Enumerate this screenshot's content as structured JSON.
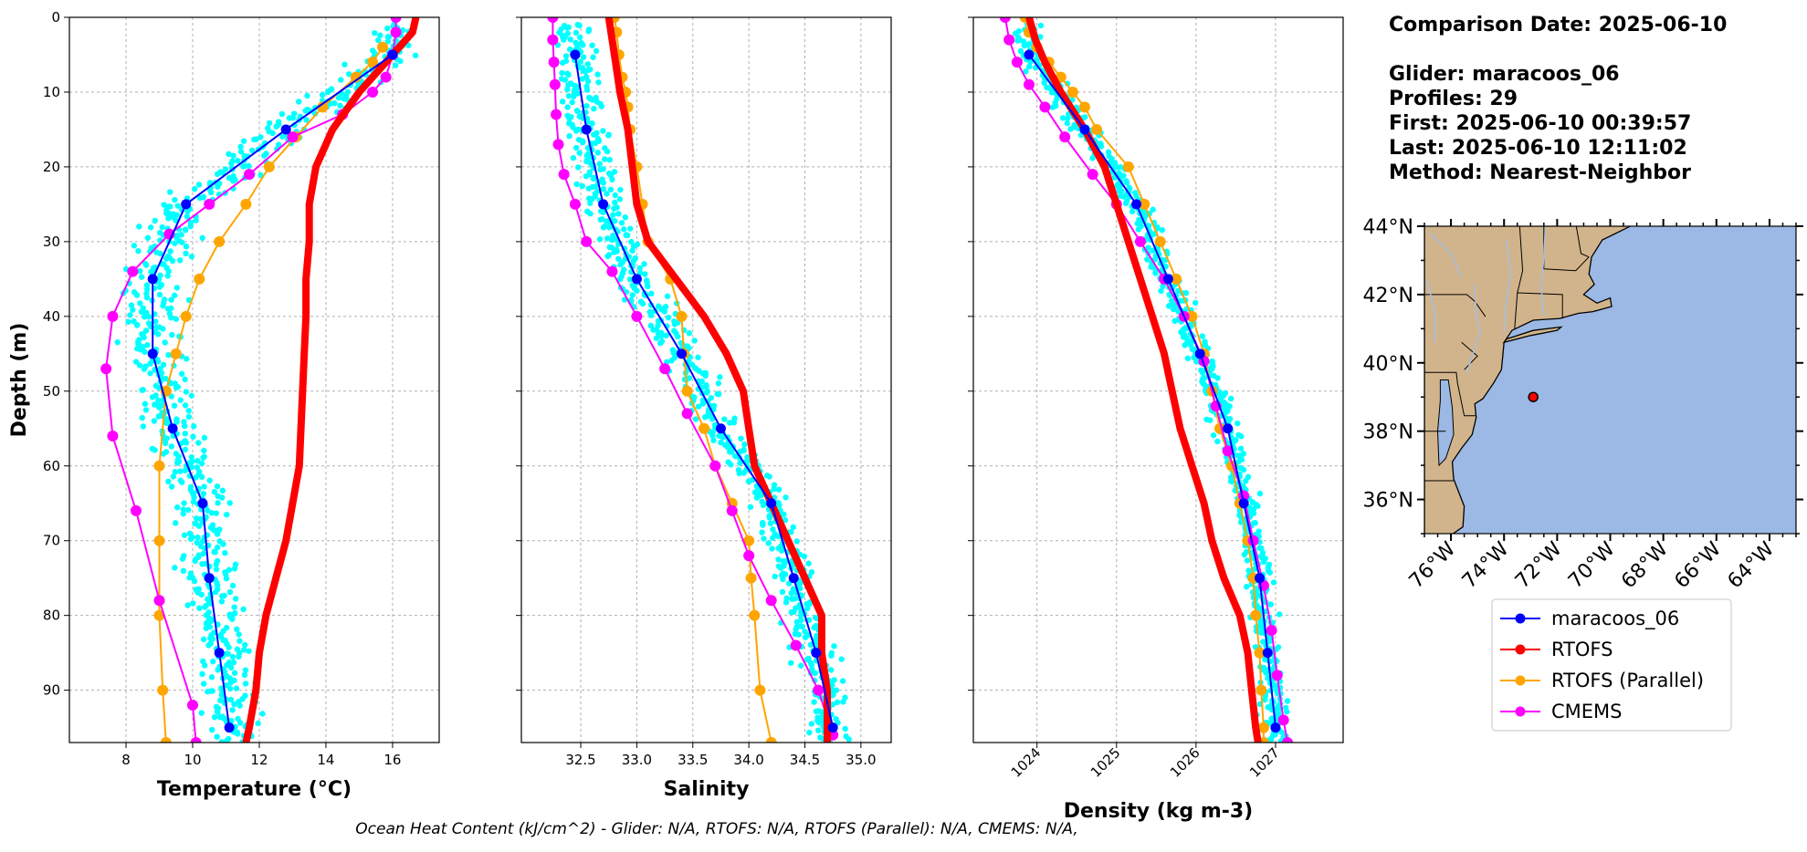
{
  "colors": {
    "glider": "#0000ff",
    "glider_points": "#00ffff",
    "rtofs": "#ff0000",
    "rtofs_parallel": "#ffa500",
    "cmems": "#ff00ff",
    "land": "#d2b48c",
    "ocean": "#9cb8e4"
  },
  "info": {
    "comparison_date": "Comparison Date: 2025-06-10",
    "glider": "Glider: maracoos_06",
    "profiles": "Profiles: 29",
    "first": "First: 2025-06-10 00:39:57",
    "last": "Last: 2025-06-10 12:11:02",
    "method": "Method: Nearest-Neighbor"
  },
  "footer": "Ocean Heat Content (kJ/cm^2) - Glider: N/A,  RTOFS: N/A,  RTOFS (Parallel): N/A,  CMEMS: N/A,",
  "legend": [
    "maracoos_06",
    "RTOFS",
    "RTOFS (Parallel)",
    "CMEMS"
  ],
  "chart_data": [
    {
      "type": "line",
      "xlabel": "Temperature (°C)",
      "ylabel": "Depth (m)",
      "xlim": [
        6.3,
        17.4
      ],
      "ylim": [
        97,
        0
      ],
      "xticks": [
        8,
        10,
        12,
        14,
        16
      ],
      "xtick_labels": [
        "8",
        "10",
        "12",
        "14",
        "16"
      ],
      "yticks": [
        0,
        10,
        20,
        30,
        40,
        50,
        60,
        70,
        80,
        90
      ],
      "grid": true,
      "series": [
        {
          "name": "maracoos_06",
          "depth": [
            5,
            15,
            25,
            35,
            45,
            55,
            65,
            75,
            85,
            95
          ],
          "values": [
            16.0,
            12.8,
            9.8,
            8.8,
            8.8,
            9.4,
            10.3,
            10.5,
            10.8,
            11.1
          ]
        },
        {
          "name": "RTOFS",
          "depth": [
            0,
            2,
            5,
            10,
            15,
            20,
            25,
            30,
            35,
            40,
            45,
            50,
            55,
            60,
            65,
            70,
            75,
            80,
            85,
            90,
            95,
            97
          ],
          "values": [
            16.7,
            16.6,
            16.0,
            15.0,
            14.2,
            13.7,
            13.5,
            13.5,
            13.4,
            13.4,
            13.35,
            13.3,
            13.25,
            13.2,
            13.0,
            12.8,
            12.5,
            12.2,
            12.0,
            11.9,
            11.7,
            11.6
          ]
        },
        {
          "name": "RTOFS (Parallel)",
          "depth": [
            4,
            6,
            8,
            12,
            16,
            20,
            25,
            30,
            35,
            40,
            45,
            50,
            60,
            70,
            80,
            90,
            97
          ],
          "values": [
            15.7,
            15.4,
            14.9,
            13.9,
            13.1,
            12.3,
            11.6,
            10.8,
            10.2,
            9.8,
            9.5,
            9.2,
            9.0,
            9.0,
            9.0,
            9.1,
            9.2
          ]
        },
        {
          "name": "CMEMS",
          "depth": [
            0,
            2,
            5,
            8,
            10,
            13,
            16,
            21,
            25,
            29,
            34,
            40,
            47,
            56,
            66,
            78,
            92,
            97
          ],
          "values": [
            16.1,
            16.1,
            16.0,
            15.8,
            15.4,
            14.5,
            13.0,
            11.7,
            10.5,
            9.3,
            8.2,
            7.6,
            7.4,
            7.6,
            8.3,
            9.0,
            10.0,
            10.1
          ]
        }
      ]
    },
    {
      "type": "line",
      "xlabel": "Salinity",
      "xlim": [
        31.97,
        35.27
      ],
      "ylim": [
        97,
        0
      ],
      "xticks": [
        32.5,
        33.0,
        33.5,
        34.0,
        34.5,
        35.0
      ],
      "xtick_labels": [
        "32.5",
        "33.0",
        "33.5",
        "34.0",
        "34.5",
        "35.0"
      ],
      "yticks": [
        0,
        10,
        20,
        30,
        40,
        50,
        60,
        70,
        80,
        90
      ],
      "grid": true,
      "series": [
        {
          "name": "maracoos_06",
          "depth": [
            5,
            15,
            25,
            35,
            45,
            55,
            65,
            75,
            85,
            95
          ],
          "values": [
            32.45,
            32.55,
            32.7,
            33.0,
            33.4,
            33.75,
            34.2,
            34.4,
            34.6,
            34.75
          ]
        },
        {
          "name": "RTOFS",
          "depth": [
            0,
            5,
            10,
            15,
            20,
            25,
            30,
            35,
            40,
            45,
            50,
            55,
            60,
            65,
            70,
            75,
            80,
            85,
            90,
            95,
            97
          ],
          "values": [
            32.75,
            32.8,
            32.85,
            32.92,
            32.96,
            33.0,
            33.1,
            33.35,
            33.6,
            33.8,
            33.95,
            34.0,
            34.05,
            34.2,
            34.35,
            34.5,
            34.65,
            34.65,
            34.7,
            34.7,
            34.7
          ]
        },
        {
          "name": "RTOFS (Parallel)",
          "depth": [
            0,
            2,
            5,
            8,
            10,
            12,
            15,
            20,
            25,
            30,
            35,
            40,
            45,
            50,
            55,
            60,
            65,
            70,
            75,
            80,
            90,
            97
          ],
          "values": [
            32.8,
            32.82,
            32.84,
            32.87,
            32.9,
            32.92,
            32.94,
            33.0,
            33.05,
            33.1,
            33.3,
            33.4,
            33.42,
            33.45,
            33.6,
            33.7,
            33.85,
            34.0,
            34.02,
            34.05,
            34.1,
            34.2
          ]
        },
        {
          "name": "CMEMS",
          "depth": [
            0,
            3,
            6,
            9,
            13,
            17,
            21,
            25,
            30,
            34,
            40,
            47,
            53,
            60,
            66,
            72,
            78,
            84,
            90,
            96
          ],
          "values": [
            32.25,
            32.25,
            32.26,
            32.27,
            32.28,
            32.3,
            32.35,
            32.45,
            32.55,
            32.78,
            33.0,
            33.25,
            33.45,
            33.7,
            33.85,
            34.0,
            34.2,
            34.42,
            34.62,
            34.75
          ]
        }
      ]
    },
    {
      "type": "line",
      "xlabel": "Density (kg m-3)",
      "xlim": [
        1023.2,
        1027.85
      ],
      "ylim": [
        97,
        0
      ],
      "xticks": [
        1024,
        1025,
        1026,
        1027
      ],
      "xtick_labels": [
        "1024",
        "1025",
        "1026",
        "1027"
      ],
      "yticks": [
        0,
        10,
        20,
        30,
        40,
        50,
        60,
        70,
        80,
        90
      ],
      "grid": true,
      "series": [
        {
          "name": "maracoos_06",
          "depth": [
            5,
            15,
            25,
            35,
            45,
            55,
            65,
            75,
            85,
            95
          ],
          "values": [
            1023.9,
            1024.6,
            1025.25,
            1025.65,
            1026.05,
            1026.4,
            1026.6,
            1026.8,
            1026.9,
            1027.0
          ]
        },
        {
          "name": "RTOFS",
          "depth": [
            0,
            3,
            6,
            10,
            15,
            20,
            25,
            30,
            35,
            40,
            45,
            50,
            55,
            60,
            65,
            70,
            75,
            80,
            85,
            90,
            95,
            97
          ],
          "values": [
            1023.9,
            1023.98,
            1024.1,
            1024.3,
            1024.6,
            1024.85,
            1025.0,
            1025.15,
            1025.3,
            1025.45,
            1025.6,
            1025.7,
            1025.8,
            1025.95,
            1026.1,
            1026.2,
            1026.35,
            1026.55,
            1026.65,
            1026.7,
            1026.75,
            1026.78
          ]
        },
        {
          "name": "RTOFS (Parallel)",
          "depth": [
            0,
            2,
            4,
            6,
            8,
            10,
            12,
            15,
            20,
            25,
            30,
            35,
            40,
            45,
            50,
            55,
            60,
            65,
            70,
            75,
            80,
            85,
            90,
            95,
            97
          ],
          "values": [
            1023.85,
            1023.9,
            1024.0,
            1024.15,
            1024.3,
            1024.45,
            1024.6,
            1024.75,
            1025.15,
            1025.35,
            1025.55,
            1025.75,
            1025.95,
            1026.1,
            1026.2,
            1026.3,
            1026.45,
            1026.55,
            1026.65,
            1026.72,
            1026.75,
            1026.8,
            1026.82,
            1026.85,
            1026.85
          ]
        },
        {
          "name": "CMEMS",
          "depth": [
            0,
            3,
            6,
            9,
            12,
            16,
            21,
            25,
            30,
            35,
            40,
            46,
            52,
            58,
            64,
            70,
            76,
            82,
            88,
            94,
            97
          ],
          "values": [
            1023.6,
            1023.65,
            1023.75,
            1023.9,
            1024.1,
            1024.35,
            1024.7,
            1025.0,
            1025.3,
            1025.6,
            1025.85,
            1026.1,
            1026.25,
            1026.4,
            1026.6,
            1026.72,
            1026.85,
            1026.95,
            1027.02,
            1027.1,
            1027.15
          ]
        }
      ]
    }
  ],
  "map": {
    "lat_labels": [
      "44°N",
      "42°N",
      "40°N",
      "38°N",
      "36°N"
    ],
    "lon_labels": [
      "76°W",
      "74°W",
      "72°W",
      "70°W",
      "68°W",
      "66°W",
      "64°W"
    ],
    "lat_range": [
      35,
      44
    ],
    "lon_range": [
      -77,
      -63
    ],
    "glider_position": {
      "lat": 39.0,
      "lon": -72.9
    }
  }
}
